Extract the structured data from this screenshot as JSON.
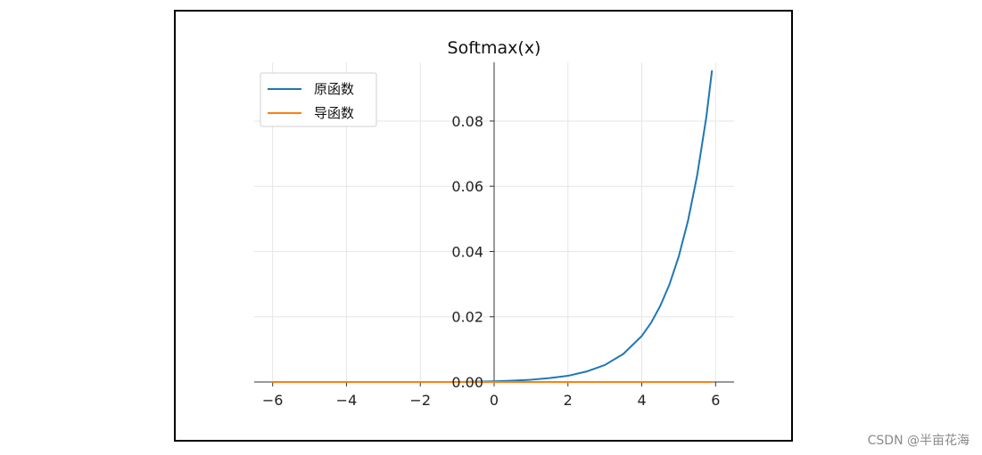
{
  "watermark": "CSDN @半亩花海",
  "chart_data": {
    "type": "line",
    "title": "Softmax(x)",
    "xlabel": "",
    "ylabel": "",
    "xlim": [
      -6.5,
      6.5
    ],
    "ylim": [
      0,
      0.098
    ],
    "x_ticks": [
      -6,
      -4,
      -2,
      0,
      2,
      4,
      6
    ],
    "x_tick_labels": [
      "−6",
      "−4",
      "−2",
      "0",
      "2",
      "4",
      "6"
    ],
    "y_ticks": [
      0.0,
      0.02,
      0.04,
      0.06,
      0.08
    ],
    "y_tick_labels": [
      "0.00",
      "0.02",
      "0.04",
      "0.06",
      "0.08"
    ],
    "grid": true,
    "legend_position": "top-left",
    "spines": "centered",
    "series": [
      {
        "name": "原函数",
        "color": "#1f77b4",
        "x": [
          -6,
          -5,
          -4,
          -3,
          -2,
          -1,
          0,
          0.5,
          1,
          1.5,
          2,
          2.5,
          3,
          3.5,
          4,
          4.25,
          4.5,
          4.75,
          5,
          5.25,
          5.5,
          5.75,
          5.9
        ],
        "y": [
          0,
          0,
          0,
          0,
          0,
          0,
          0.0002,
          0.0004,
          0.0007,
          0.0012,
          0.0019,
          0.0032,
          0.0052,
          0.0086,
          0.0141,
          0.0181,
          0.0233,
          0.0299,
          0.0384,
          0.0493,
          0.0633,
          0.0813,
          0.0953
        ]
      },
      {
        "name": "导函数",
        "color": "#ff7f0e",
        "x": [
          -6,
          -3,
          0,
          3,
          5.9
        ],
        "y": [
          0,
          0,
          0,
          0,
          0
        ]
      }
    ]
  }
}
